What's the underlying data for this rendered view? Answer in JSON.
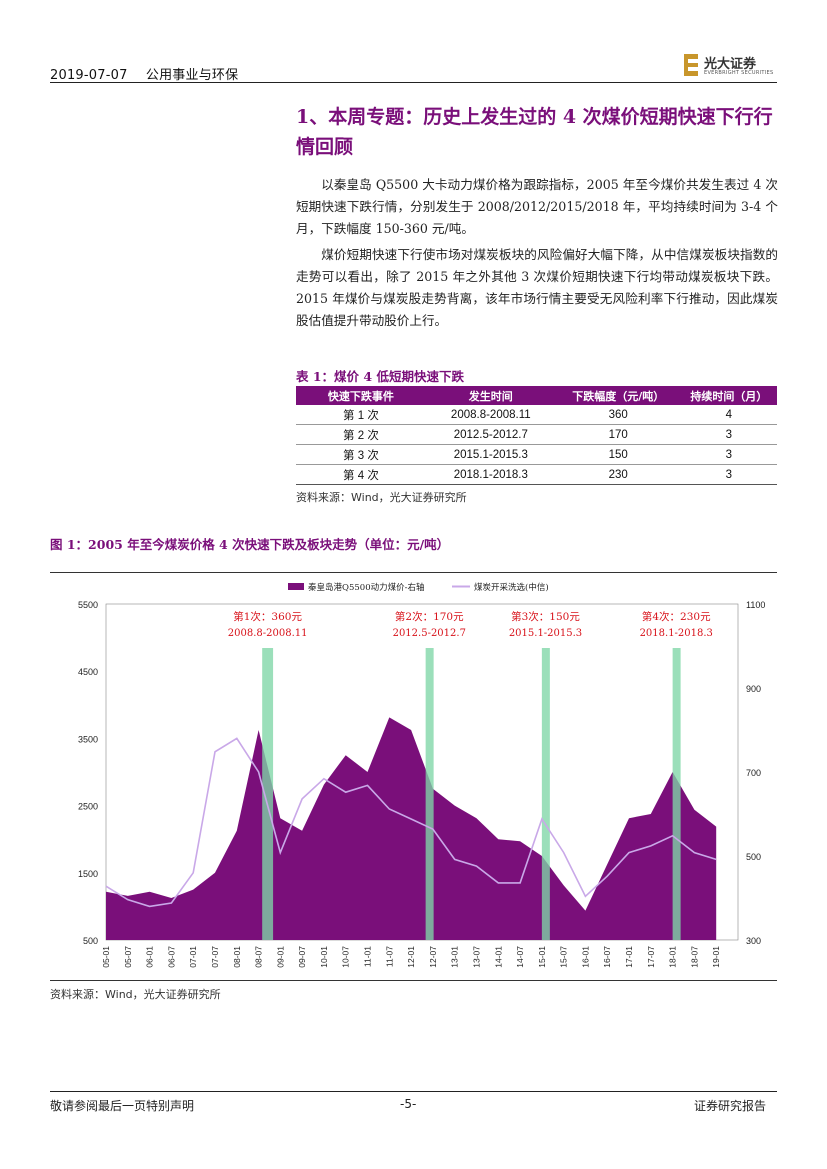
{
  "header": {
    "date": "2019-07-07",
    "sector": "公用事业与环保",
    "logo_cn": "光大证券",
    "logo_en": "EVERBRIGHT SECURITIES"
  },
  "section": {
    "title": "1、本周专题：历史上发生过的 4 次煤价短期快速下行行情回顾",
    "paragraph1": "以秦皇岛 Q5500 大卡动力煤价格为跟踪指标，2005 年至今煤价共发生表过 4 次短期快速下跌行情，分别发生于 2008/2012/2015/2018 年，平均持续时间为 3-4 个月，下跌幅度 150-360 元/吨。",
    "paragraph2": "煤价短期快速下行使市场对煤炭板块的风险偏好大幅下降，从中信煤炭板块指数的走势可以看出，除了 2015 年之外其他 3 次煤价短期快速下行均带动煤炭板块下跌。2015 年煤价与煤炭股走势背离，该年市场行情主要受无风险利率下行推动，因此煤炭股估值提升带动股价上行。"
  },
  "table1": {
    "title": "表 1：煤价 4 低短期快速下跌",
    "headers": [
      "快速下跌事件",
      "发生时间",
      "下跌幅度（元/吨）",
      "持续时间（月）"
    ],
    "rows": [
      [
        "第 1 次",
        "2008.8-2008.11",
        "360",
        "4"
      ],
      [
        "第 2 次",
        "2012.5-2012.7",
        "170",
        "3"
      ],
      [
        "第 3 次",
        "2015.1-2015.3",
        "150",
        "3"
      ],
      [
        "第 4 次",
        "2018.1-2018.3",
        "230",
        "3"
      ]
    ],
    "source": "资料来源：Wind，光大证券研究所"
  },
  "figure1": {
    "title": "图 1：2005 年至今煤炭价格 4 次快速下跌及板块走势（单位：元/吨）",
    "source": "资料来源：Wind，光大证券研究所"
  },
  "chart_data": {
    "type": "area",
    "title": "图 1：2005 年至今煤炭价格 4 次快速下跌及板块走势（单位：元/吨）",
    "legend_position": "top-center",
    "x": [
      "05-01",
      "05-07",
      "06-01",
      "06-07",
      "07-01",
      "07-07",
      "08-01",
      "08-07",
      "09-01",
      "09-07",
      "10-01",
      "10-07",
      "11-01",
      "11-07",
      "12-01",
      "12-07",
      "13-01",
      "13-07",
      "14-01",
      "14-07",
      "15-01",
      "15-07",
      "16-01",
      "16-07",
      "17-01",
      "17-07",
      "18-01",
      "18-07",
      "19-01"
    ],
    "series": [
      {
        "name": "秦皇岛港Q5500动力煤价-右轴",
        "axis": "right",
        "style": "area",
        "color": "#7a0f7a",
        "values": [
          415,
          405,
          415,
          400,
          420,
          460,
          560,
          800,
          590,
          560,
          670,
          740,
          700,
          830,
          800,
          660,
          620,
          590,
          540,
          535,
          500,
          430,
          370,
          480,
          590,
          600,
          700,
          610,
          570
        ]
      },
      {
        "name": "煤炭开采洗选(中信)",
        "axis": "left",
        "style": "line",
        "color": "#c9a8e8",
        "values": [
          1300,
          1100,
          1000,
          1050,
          1500,
          3300,
          3500,
          3000,
          1800,
          2600,
          2900,
          2700,
          2800,
          2450,
          2300,
          2150,
          1700,
          1600,
          1350,
          1350,
          2300,
          1800,
          1150,
          1450,
          1800,
          1900,
          2050,
          1800,
          1700
        ]
      }
    ],
    "y_left": {
      "min": 500,
      "max": 5500,
      "ticks": [
        "500",
        "1500",
        "2500",
        "3500",
        "4500",
        "5500"
      ]
    },
    "y_right": {
      "min": 300,
      "max": 1100,
      "ticks": [
        "300",
        "500",
        "700",
        "900",
        "1100"
      ]
    },
    "highlight_periods": [
      {
        "label": "第1次：360元",
        "period": "2008.8-2008.11",
        "start": "08-08",
        "end": "08-11",
        "color": "#7fd6a6"
      },
      {
        "label": "第2次：170元",
        "period": "2012.5-2012.7",
        "start": "12-05",
        "end": "12-07",
        "color": "#7fd6a6"
      },
      {
        "label": "第3次：150元",
        "period": "2015.1-2015.3",
        "start": "15-01",
        "end": "15-03",
        "color": "#7fd6a6"
      },
      {
        "label": "第4次：230元",
        "period": "2018.1-2018.3",
        "start": "18-01",
        "end": "18-03",
        "color": "#7fd6a6"
      }
    ]
  },
  "footer": {
    "disclaimer": "敬请参阅最后一页特别声明",
    "page": "-5-",
    "report_type": "证券研究报告"
  }
}
